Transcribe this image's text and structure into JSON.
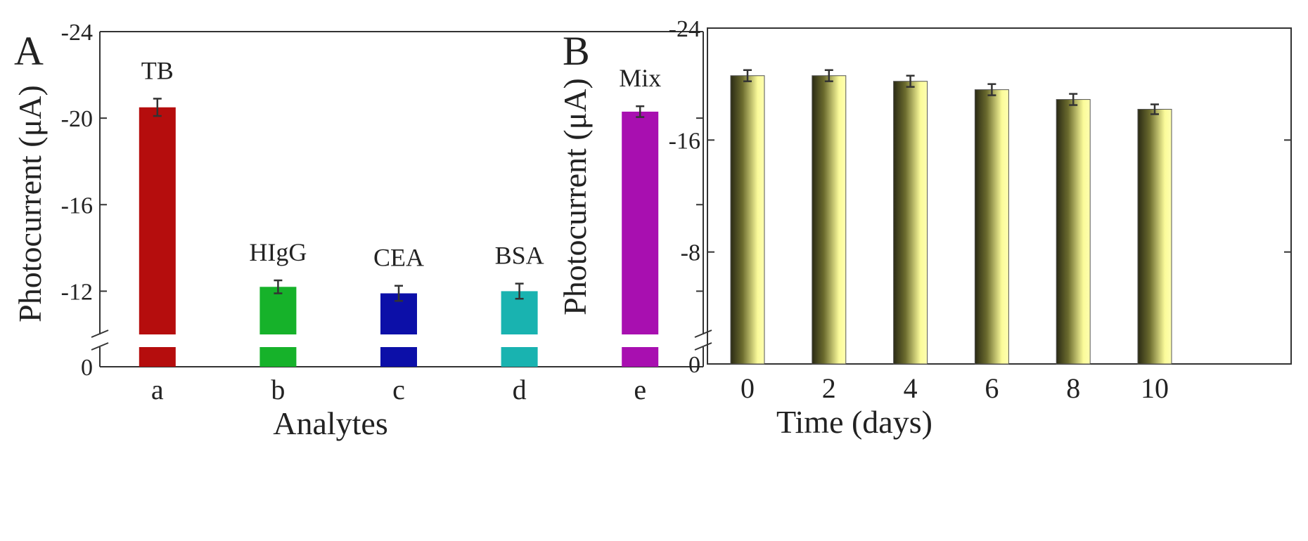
{
  "chart_data": [
    {
      "panel": "A",
      "type": "bar",
      "xlabel": "Analytes",
      "ylabel": "Photocurrent (μA)",
      "categories": [
        "a",
        "b",
        "c",
        "d",
        "e"
      ],
      "bar_labels": [
        "TB",
        "HIgG",
        "CEA",
        "BSA",
        "Mix"
      ],
      "values": [
        -20.5,
        -12.2,
        -11.9,
        -12.0,
        -20.3
      ],
      "errors": [
        0.4,
        0.3,
        0.35,
        0.35,
        0.25
      ],
      "colors": [
        "#b50d0d",
        "#16b22a",
        "#0c0fa8",
        "#19b3b0",
        "#a80fb0"
      ],
      "ylim": [
        -24,
        0
      ],
      "axis_break": [
        0,
        -10
      ],
      "yticks": [
        "-24",
        "-20",
        "-16",
        "-12",
        "0"
      ]
    },
    {
      "panel": "B",
      "type": "bar",
      "xlabel": "Time (days)",
      "ylabel": "Photocurrent (μA)",
      "categories": [
        "0",
        "2",
        "4",
        "6",
        "8",
        "10"
      ],
      "values": [
        -20.6,
        -20.6,
        -20.2,
        -19.6,
        -18.9,
        -18.2
      ],
      "errors": [
        0.4,
        0.4,
        0.4,
        0.4,
        0.4,
        0.35
      ],
      "bar_color_light": "#fbfb9a",
      "bar_color_dark": "#2a2a14",
      "ylim": [
        -24,
        0
      ],
      "yticks": [
        "-24",
        "-16",
        "-8",
        "0"
      ]
    }
  ]
}
